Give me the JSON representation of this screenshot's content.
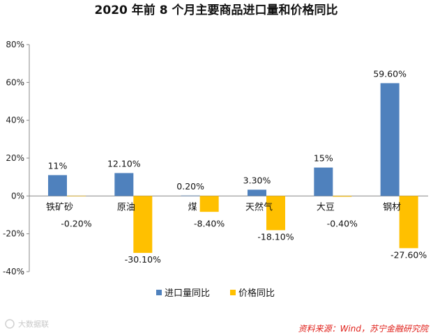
{
  "chart_data": {
    "type": "bar",
    "title": "2020 年前 8 个月主要商品进口量和价格同比",
    "categories": [
      "铁矿砂",
      "原油",
      "煤",
      "天然气",
      "大豆",
      "钢材"
    ],
    "series": [
      {
        "name": "进口量同比",
        "color": "#4f81bd",
        "values": [
          11,
          12.1,
          0.2,
          3.3,
          15,
          59.6
        ],
        "labels": [
          "11%",
          "12.10%",
          "0.20%",
          "3.30%",
          "15%",
          "59.60%"
        ]
      },
      {
        "name": "价格同比",
        "color": "#ffc000",
        "values": [
          -0.2,
          -30.1,
          -8.4,
          -18.1,
          -0.4,
          -27.6
        ],
        "labels": [
          "-0.20%",
          "-30.10%",
          "-8.40%",
          "-18.10%",
          "-0.40%",
          "-27.60%"
        ]
      }
    ],
    "ylim": [
      -40,
      80
    ],
    "yticks": [
      80,
      60,
      40,
      20,
      0,
      -20,
      -40
    ],
    "ytick_labels": [
      "80%",
      "60%",
      "40%",
      "20%",
      "0%",
      "-20%",
      "-40%"
    ],
    "xlabel": "",
    "ylabel": "",
    "legend_position": "bottom",
    "grid": false
  },
  "source": "资料来源：Wind，苏宁金融研究院",
  "watermark": "大数据联"
}
